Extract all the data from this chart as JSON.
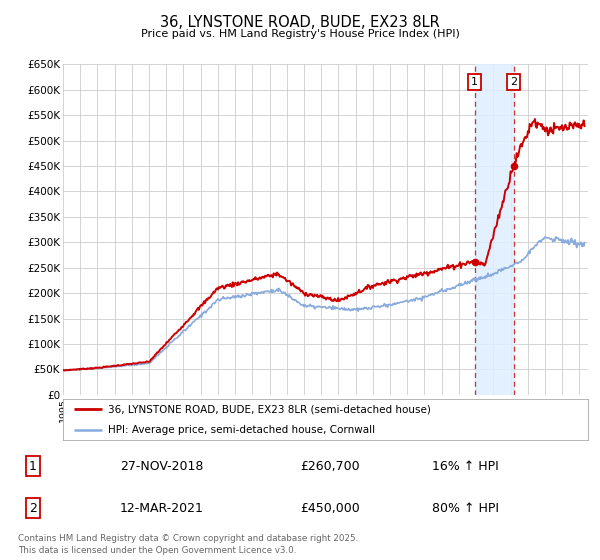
{
  "title": "36, LYNSTONE ROAD, BUDE, EX23 8LR",
  "subtitle": "Price paid vs. HM Land Registry's House Price Index (HPI)",
  "ylim": [
    0,
    650000
  ],
  "yticks": [
    0,
    50000,
    100000,
    150000,
    200000,
    250000,
    300000,
    350000,
    400000,
    450000,
    500000,
    550000,
    600000,
    650000
  ],
  "ytick_labels": [
    "£0",
    "£50K",
    "£100K",
    "£150K",
    "£200K",
    "£250K",
    "£300K",
    "£350K",
    "£400K",
    "£450K",
    "£500K",
    "£550K",
    "£600K",
    "£650K"
  ],
  "xlim_start": 1995.0,
  "xlim_end": 2025.5,
  "purchase1_date": 2018.91,
  "purchase1_price": 260700,
  "purchase2_date": 2021.19,
  "purchase2_price": 450000,
  "line_color_property": "#cc0000",
  "line_color_hpi": "#88aadd",
  "chart_bg_color": "#ffffff",
  "shaded_color": "#ddeeff",
  "grid_color": "#cccccc",
  "footer_text": "Contains HM Land Registry data © Crown copyright and database right 2025.\nThis data is licensed under the Open Government Licence v3.0.",
  "legend_label_property": "36, LYNSTONE ROAD, BUDE, EX23 8LR (semi-detached house)",
  "legend_label_hpi": "HPI: Average price, semi-detached house, Cornwall",
  "table_row1": [
    "1",
    "27-NOV-2018",
    "£260,700",
    "16% ↑ HPI"
  ],
  "table_row2": [
    "2",
    "12-MAR-2021",
    "£450,000",
    "80% ↑ HPI"
  ]
}
